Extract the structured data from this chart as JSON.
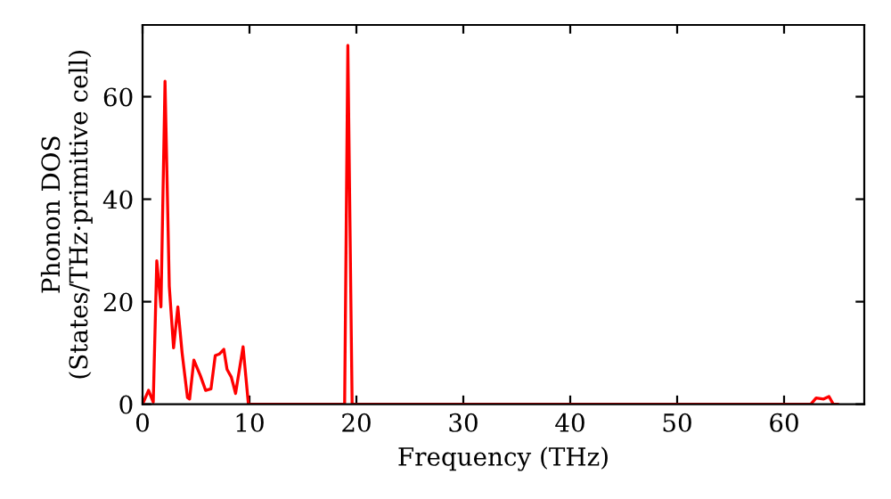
{
  "chart_data": {
    "type": "line",
    "xlabel": "Frequency (THz)",
    "ylabel": "Phonon DOS\n(States/THz·primitive cell)",
    "x": [
      0,
      0.56,
      1.0,
      1.33,
      1.72,
      2.1,
      2.5,
      2.9,
      3.3,
      3.7,
      4.2,
      4.4,
      4.8,
      5.4,
      5.9,
      6.4,
      6.8,
      7.2,
      7.6,
      7.9,
      8.3,
      8.7,
      9.4,
      9.9,
      18.9,
      19.2,
      19.6,
      62.5,
      63.0,
      63.7,
      64.2,
      64.6,
      65
    ],
    "series": [
      {
        "color": "#ff0000",
        "values": [
          0,
          2.7,
          0.4,
          28,
          19,
          63,
          23,
          11,
          19,
          10,
          1.3,
          1,
          8.6,
          5.6,
          2.7,
          3,
          9.5,
          9.8,
          10.7,
          6.8,
          5.3,
          2.1,
          11.2,
          0,
          0,
          70,
          0,
          0,
          1.2,
          1.0,
          1.5,
          0,
          0
        ]
      }
    ],
    "xlim": [
      0,
      67.5
    ],
    "ylim": [
      0,
      74
    ],
    "xticks": [
      0,
      10,
      20,
      30,
      40,
      50,
      60
    ],
    "yticks": [
      0,
      20,
      40,
      60
    ],
    "grid": false,
    "legend": false,
    "marker": "none",
    "line_style": "solid"
  }
}
